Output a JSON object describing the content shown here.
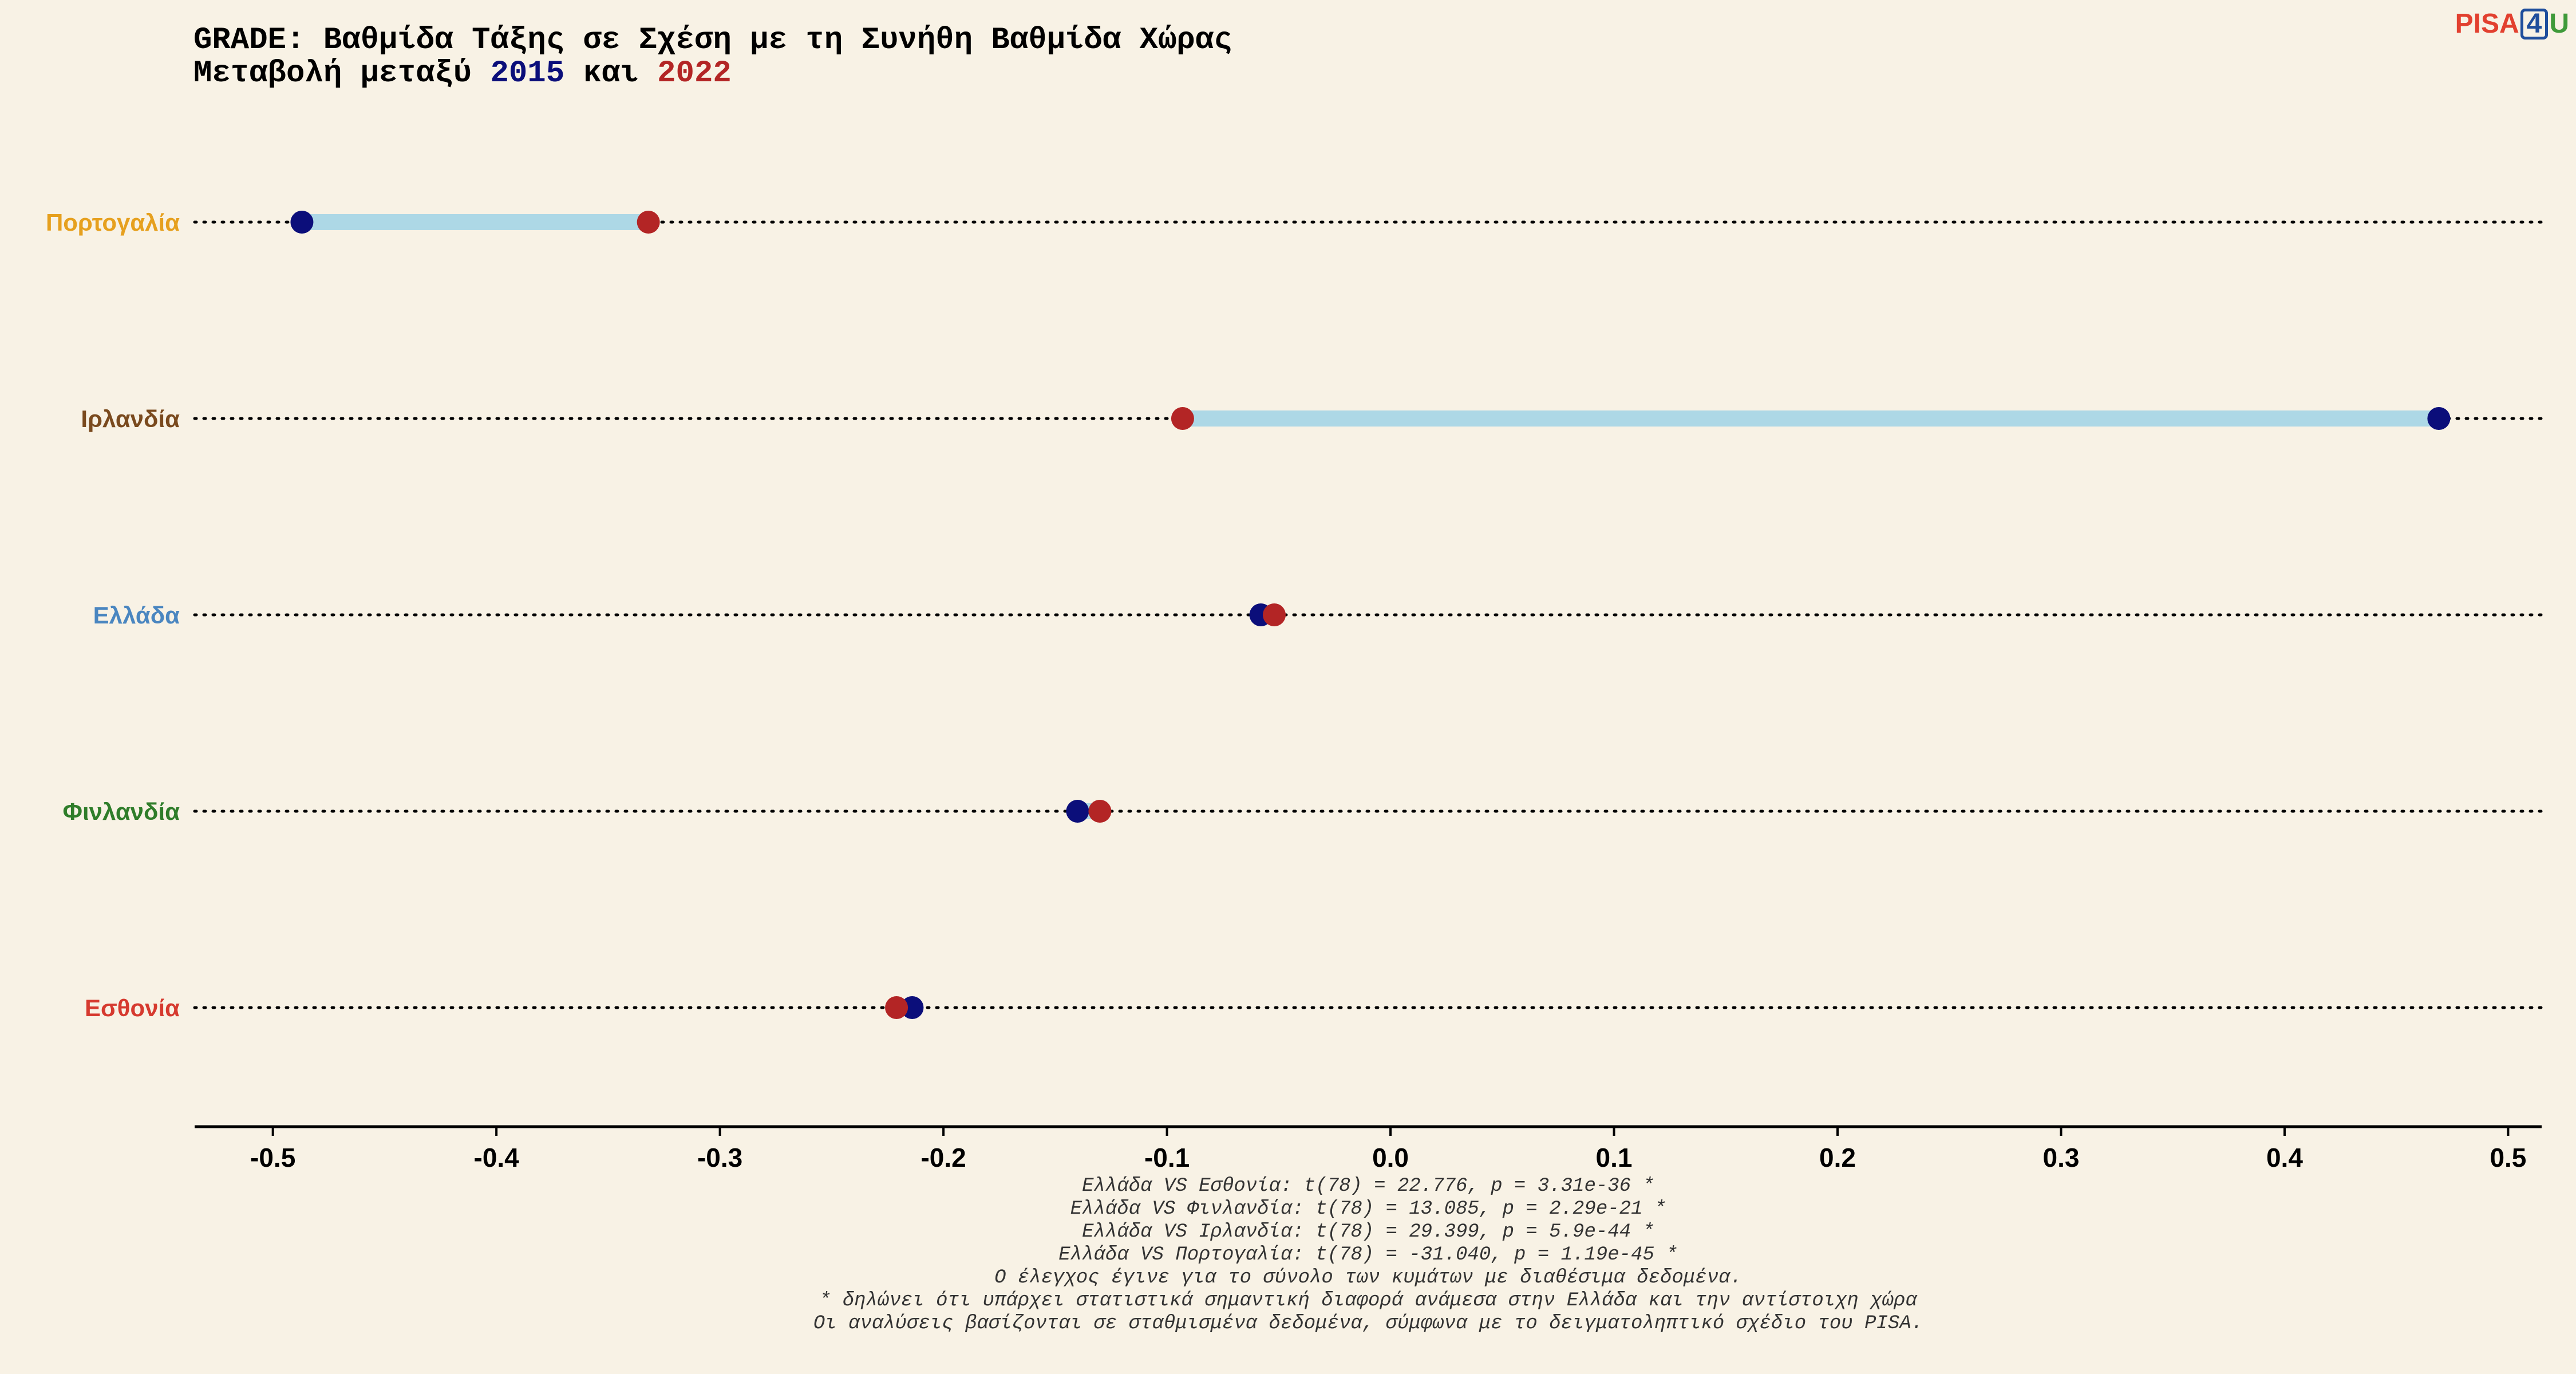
{
  "title": {
    "line1": "GRADE: Βαθμίδα Τάξης σε Σχέση με τη Συνήθη Βαθμίδα Χώρας",
    "line2_prefix": "Μεταβολή μεταξύ ",
    "year_a": "2015",
    "line2_mid": " και ",
    "year_b": "2022"
  },
  "logo": {
    "part1": "PISA",
    "part2": "4",
    "part3": "U",
    "color1": "#e2402f",
    "color2": "#1f4e9c",
    "color3": "#3f9a3a"
  },
  "colors": {
    "c2015": "#0b0e7a",
    "c2022": "#b32525",
    "range_line": "#add8e6",
    "axis": "#000000"
  },
  "chart_data": {
    "type": "dumbbell",
    "xlim": [
      -0.535,
      0.515
    ],
    "ticks": [
      -0.5,
      -0.4,
      -0.3,
      -0.2,
      -0.1,
      0.0,
      0.1,
      0.2,
      0.3,
      0.4,
      0.5
    ],
    "tick_labels": [
      "-0.5",
      "-0.4",
      "-0.3",
      "-0.2",
      "-0.1",
      "0.0",
      "0.1",
      "0.2",
      "0.3",
      "0.4",
      "0.5"
    ],
    "categories": [
      {
        "name": "Πορτογαλία",
        "color": "#e6a01e",
        "v2015": -0.487,
        "v2022": -0.332
      },
      {
        "name": "Ιρλανδία",
        "color": "#7a4a1e",
        "v2015": 0.469,
        "v2022": -0.093
      },
      {
        "name": "Ελλάδα",
        "color": "#4a86c0",
        "v2015": -0.058,
        "v2022": -0.052
      },
      {
        "name": "Φινλανδία",
        "color": "#2f7d2a",
        "v2015": -0.14,
        "v2022": -0.13
      },
      {
        "name": "Εσθονία",
        "color": "#d63a2f",
        "v2015": -0.214,
        "v2022": -0.221
      }
    ]
  },
  "footnotes": [
    "Ελλάδα VS Εσθονία: t(78) = 22.776, p = 3.31e-36 *",
    "Ελλάδα VS Φινλανδία: t(78) = 13.085, p = 2.29e-21 *",
    "Ελλάδα VS Ιρλανδία: t(78) = 29.399, p = 5.9e-44 *",
    "Ελλάδα VS Πορτογαλία: t(78) = -31.040, p = 1.19e-45 *",
    "Ο έλεγχος έγινε για το σύνολο των κυμάτων με διαθέσιμα δεδομένα.",
    "* δηλώνει ότι υπάρχει στατιστικά σημαντική διαφορά ανάμεσα στην Ελλάδα και την αντίστοιχη χώρα",
    "Οι αναλύσεις βασίζονται σε σταθμισμένα δεδομένα, σύμφωνα με το δειγματοληπτικό σχέδιο του PISA."
  ]
}
